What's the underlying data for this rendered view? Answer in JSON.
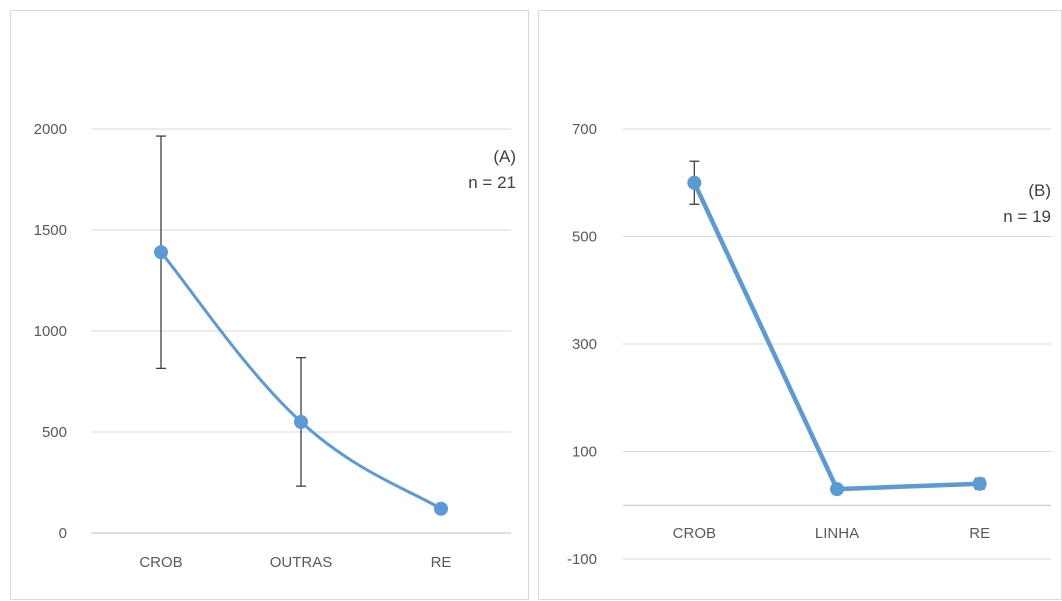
{
  "chart_data": [
    {
      "type": "line",
      "annotation": {
        "label": "(A)",
        "n": "n = 21"
      },
      "categories": [
        "CROB",
        "OUTRAS",
        "RE"
      ],
      "series": [
        {
          "values": [
            1390,
            550,
            120
          ],
          "error": [
            575,
            318,
            0
          ]
        }
      ],
      "ylim": [
        0,
        2000
      ],
      "yticks": [
        "0",
        "500",
        "1000",
        "1500",
        "2000"
      ],
      "grid": true,
      "smooth": true,
      "colors": {
        "line": "#5b9bd5",
        "errorbar": "#404040",
        "grid": "#d9d9d9",
        "axis": "#bfbfbf"
      }
    },
    {
      "type": "line",
      "annotation": {
        "label": "(B)",
        "n": "n = 19"
      },
      "categories": [
        "CROB",
        "LINHA",
        "RE"
      ],
      "series": [
        {
          "values": [
            600,
            30,
            40
          ],
          "error": [
            40,
            0,
            10
          ]
        }
      ],
      "ylim": [
        -100,
        700
      ],
      "yticks": [
        "-100",
        "100",
        "300",
        "500",
        "700"
      ],
      "grid": true,
      "smooth": false,
      "colors": {
        "line": "#5b9bd5",
        "errorbar": "#404040",
        "grid": "#d9d9d9",
        "axis": "#bfbfbf"
      }
    }
  ]
}
